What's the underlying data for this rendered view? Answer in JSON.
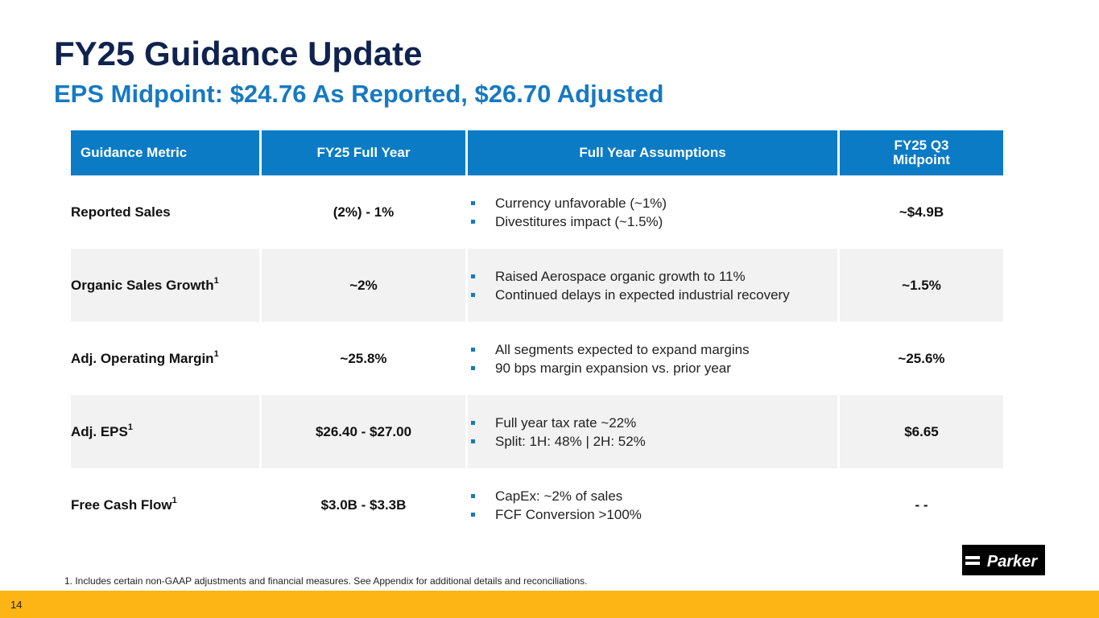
{
  "header": {
    "title": "FY25 Guidance Update",
    "subtitle": "EPS Midpoint: $24.76 As Reported, $26.70 Adjusted"
  },
  "table": {
    "columns": [
      "Guidance Metric",
      "FY25 Full Year",
      "Full Year Assumptions",
      "FY25 Q3\nMidpoint"
    ],
    "rows": [
      {
        "metric": "Reported Sales",
        "sup": "",
        "full_year": "(2%) - 1%",
        "assumptions": [
          "Currency unfavorable (~1%)",
          "Divestitures impact (~1.5%)"
        ],
        "q3": "~$4.9B"
      },
      {
        "metric": "Organic Sales Growth",
        "sup": "1",
        "full_year": "~2%",
        "assumptions": [
          "Raised Aerospace organic growth to 11%",
          "Continued delays in expected industrial recovery"
        ],
        "q3": "~1.5%"
      },
      {
        "metric": "Adj. Operating Margin",
        "sup": "1",
        "full_year": "~25.8%",
        "assumptions": [
          "All segments expected to expand margins",
          "90 bps margin expansion vs. prior year"
        ],
        "q3": "~25.6%"
      },
      {
        "metric": "Adj. EPS",
        "sup": "1",
        "full_year": "$26.40 - $27.00",
        "assumptions": [
          "Full year tax rate ~22%",
          "Split: 1H: 48% | 2H: 52%"
        ],
        "q3": "$6.65"
      },
      {
        "metric": "Free Cash Flow",
        "sup": "1",
        "full_year": "$3.0B - $3.3B",
        "assumptions": [
          "CapEx: ~2% of sales",
          "FCF Conversion >100%"
        ],
        "q3": "- -"
      }
    ]
  },
  "footnote": "1. Includes certain non-GAAP adjustments and financial measures. See Appendix for additional details and reconciliations.",
  "logo": {
    "text": "Parker",
    "icon": "parker-logo-icon"
  },
  "page_number": "14",
  "colors": {
    "navy": "#10234e",
    "blue": "#1679c1",
    "header_blue": "#0a7bc4",
    "gold": "#fdb515",
    "shade": "#f2f2f2"
  }
}
